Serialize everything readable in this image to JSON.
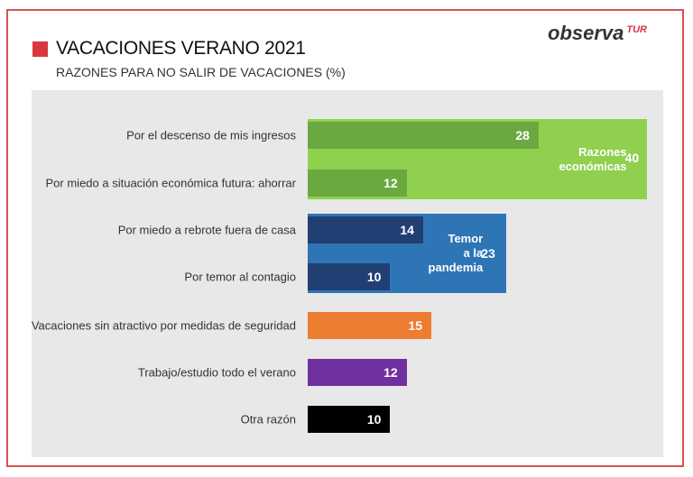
{
  "header": {
    "title": "VACACIONES VERANO 2021",
    "subtitle": "RAZONES PARA NO SALIR DE VACACIONES (%)",
    "logo_main": "observa",
    "logo_sup": "TUR"
  },
  "chart_data": {
    "type": "bar",
    "title": "VACACIONES VERANO 2021",
    "subtitle": "RAZONES PARA NO SALIR DE VACACIONES (%)",
    "categories": [
      "Por el descenso de mis ingresos",
      "Por  miedo a situación económica futura: ahorrar",
      "Por miedo a rebrote fuera de casa",
      "Por temor al contagio",
      "Vacaciones sin atractivo por medidas de seguridad",
      "Trabajo/estudio todo el verano",
      "Otra razón"
    ],
    "values": [
      28,
      12,
      14,
      10,
      15,
      12,
      10
    ],
    "colors": [
      "#6aa940",
      "#6aa940",
      "#213f73",
      "#213f73",
      "#ed7d31",
      "#7030a0",
      "#000000"
    ],
    "groups": [
      {
        "label_lines": [
          "Razones",
          "económicas"
        ],
        "value": 40,
        "members": [
          0,
          1
        ],
        "color": "#8fd14f"
      },
      {
        "label_lines": [
          "Temor",
          "a la",
          "pandemia"
        ],
        "value": 23,
        "members": [
          2,
          3
        ],
        "color": "#2e75b6"
      }
    ],
    "xlabel": "",
    "ylabel": "",
    "xlim": [
      0,
      42
    ]
  }
}
